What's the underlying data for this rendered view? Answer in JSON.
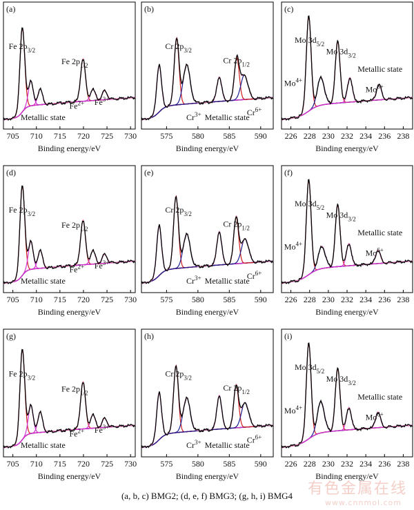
{
  "caption": "(a, b, c) BMG2; (d, e, f) BMG3; (g, h, i) BMG4",
  "watermark": {
    "line1": "有色金属在线",
    "line2": "www.cnnmol.com"
  },
  "colors": {
    "raw": "#000000",
    "background": "#1a1a8c",
    "red": "#d01c1c",
    "magenta": "#d030d0",
    "pink": "#e88ab0"
  },
  "chart_data": [
    {
      "type": "line",
      "panel": "(a)",
      "element": "Fe",
      "xlabel": "Binding energy/eV",
      "xlim": [
        703,
        731
      ],
      "xticks": [
        705,
        710,
        715,
        720,
        725,
        730
      ],
      "labels": [
        {
          "text": "Fe 2p",
          "sub": "3/2"
        },
        {
          "text": "Fe 2p",
          "sub": "1/2"
        },
        {
          "text": "Metallic state"
        },
        {
          "text": "Fe",
          "sup": "2+"
        },
        {
          "text": "Fe",
          "sup": "3+"
        }
      ],
      "peaks": [
        {
          "name": "Metallic state",
          "center": 707.0,
          "height": 0.75,
          "color": "red"
        },
        {
          "name": "Fe2+",
          "center": 708.8,
          "height": 0.22,
          "color": "magenta"
        },
        {
          "name": "Fe3+",
          "center": 710.8,
          "height": 0.14,
          "color": "magenta"
        },
        {
          "name": "Metallic state",
          "center": 719.9,
          "height": 0.38,
          "color": "red"
        },
        {
          "name": "Fe2+",
          "center": 722.0,
          "height": 0.1,
          "color": "magenta"
        },
        {
          "name": "Fe3+",
          "center": 724.5,
          "height": 0.08,
          "color": "magenta"
        }
      ]
    },
    {
      "type": "line",
      "panel": "(b)",
      "element": "Cr",
      "xlabel": "Binding energy/eV",
      "xlim": [
        571,
        592
      ],
      "xticks": [
        575,
        580,
        585,
        590
      ],
      "labels": [
        {
          "text": "Cr 2p",
          "sub": "3/2"
        },
        {
          "text": "Cr 2p",
          "sub": "1/2"
        },
        {
          "text": "Cr",
          "sup": "3+"
        },
        {
          "text": "Metallic state"
        },
        {
          "text": "Cr",
          "sup": "6+"
        }
      ],
      "peaks": [
        {
          "name": "Metallic state",
          "center": 573.8,
          "height": 0.42,
          "color": "magenta"
        },
        {
          "name": "Cr3+",
          "center": 576.6,
          "height": 0.6,
          "color": "red"
        },
        {
          "name": "Cr6+",
          "center": 578.2,
          "height": 0.35,
          "color": "navy"
        },
        {
          "name": "Metallic state",
          "center": 583.4,
          "height": 0.22,
          "color": "magenta"
        },
        {
          "name": "Cr3+",
          "center": 586.2,
          "height": 0.38,
          "color": "red"
        },
        {
          "name": "Cr6+",
          "center": 587.4,
          "height": 0.22,
          "color": "navy"
        }
      ]
    },
    {
      "type": "line",
      "panel": "(c)",
      "element": "Mo",
      "xlabel": "Binding energy/eV",
      "xlim": [
        225,
        239
      ],
      "xticks": [
        226,
        228,
        230,
        232,
        234,
        236,
        238
      ],
      "labels": [
        {
          "text": "Mo 3d",
          "sub": "5/2"
        },
        {
          "text": "Mo 3d",
          "sub": "3/2"
        },
        {
          "text": "Metallic state"
        },
        {
          "text": "Mo",
          "sup": "4+"
        },
        {
          "text": "Mo",
          "sup": "6+"
        }
      ],
      "peaks": [
        {
          "name": "Metallic state",
          "center": 227.9,
          "height": 0.85,
          "color": "red"
        },
        {
          "name": "Mo4+",
          "center": 229.2,
          "height": 0.25,
          "color": "navy"
        },
        {
          "name": "Metallic state",
          "center": 231.0,
          "height": 0.55,
          "color": "red"
        },
        {
          "name": "Mo6+",
          "center": 232.3,
          "height": 0.22,
          "color": "magenta"
        },
        {
          "name": "Mo6+",
          "center": 235.4,
          "height": 0.14,
          "color": "magenta"
        }
      ]
    },
    {
      "type": "line",
      "panel": "(d)",
      "element": "Fe",
      "xlabel": "Binding energy/eV",
      "xlim": [
        703,
        731
      ],
      "xticks": [
        705,
        710,
        715,
        720,
        725,
        730
      ],
      "labels": [
        {
          "text": "Fe 2p",
          "sub": "3/2"
        },
        {
          "text": "Fe 2p",
          "sub": "1/2"
        },
        {
          "text": "Metallic state"
        },
        {
          "text": "Fe",
          "sup": "2+"
        },
        {
          "text": "Fe",
          "sup": "3+"
        }
      ],
      "peaks": [
        {
          "name": "Metallic state",
          "center": 707.0,
          "height": 0.8,
          "color": "red"
        },
        {
          "name": "Fe2+",
          "center": 708.8,
          "height": 0.25,
          "color": "magenta"
        },
        {
          "name": "Fe3+",
          "center": 710.8,
          "height": 0.16,
          "color": "magenta"
        },
        {
          "name": "Metallic state",
          "center": 719.9,
          "height": 0.4,
          "color": "red"
        },
        {
          "name": "Fe2+",
          "center": 722.0,
          "height": 0.12,
          "color": "magenta"
        },
        {
          "name": "Fe3+",
          "center": 724.5,
          "height": 0.08,
          "color": "magenta"
        }
      ]
    },
    {
      "type": "line",
      "panel": "(e)",
      "element": "Cr",
      "xlabel": "Binding energy/eV",
      "xlim": [
        571,
        592
      ],
      "xticks": [
        575,
        580,
        585,
        590
      ],
      "labels": [
        {
          "text": "Cr 2p",
          "sub": "3/2"
        },
        {
          "text": "Cr 2p",
          "sub": "1/2"
        },
        {
          "text": "Cr",
          "sup": "3+"
        },
        {
          "text": "Metallic state"
        },
        {
          "text": "Cr",
          "sup": "6+"
        }
      ],
      "peaks": [
        {
          "name": "Metallic state",
          "center": 573.8,
          "height": 0.45,
          "color": "magenta"
        },
        {
          "name": "Cr3+",
          "center": 576.5,
          "height": 0.65,
          "color": "red"
        },
        {
          "name": "Cr6+",
          "center": 578.2,
          "height": 0.3,
          "color": "navy"
        },
        {
          "name": "Metallic state",
          "center": 583.4,
          "height": 0.3,
          "color": "magenta"
        },
        {
          "name": "Cr3+",
          "center": 586.1,
          "height": 0.42,
          "color": "red"
        },
        {
          "name": "Cr6+",
          "center": 587.5,
          "height": 0.22,
          "color": "navy"
        }
      ]
    },
    {
      "type": "line",
      "panel": "(f)",
      "element": "Mo",
      "xlabel": "Binding energy/eV",
      "xlim": [
        225,
        239
      ],
      "xticks": [
        226,
        228,
        230,
        232,
        234,
        236,
        238
      ],
      "labels": [
        {
          "text": "Mo 3d",
          "sub": "5/2"
        },
        {
          "text": "Mo 3d",
          "sub": "3/2"
        },
        {
          "text": "Metallic state"
        },
        {
          "text": "Mo",
          "sup": "4+"
        },
        {
          "text": "Mo",
          "sup": "6+"
        }
      ],
      "peaks": [
        {
          "name": "Metallic state",
          "center": 227.9,
          "height": 0.85,
          "color": "red"
        },
        {
          "name": "Mo4+",
          "center": 229.3,
          "height": 0.2,
          "color": "navy"
        },
        {
          "name": "Metallic state",
          "center": 231.0,
          "height": 0.55,
          "color": "red"
        },
        {
          "name": "Mo6+",
          "center": 232.2,
          "height": 0.2,
          "color": "magenta"
        },
        {
          "name": "Mo6+",
          "center": 235.3,
          "height": 0.12,
          "color": "magenta"
        }
      ]
    },
    {
      "type": "line",
      "panel": "(g)",
      "element": "Fe",
      "xlabel": "Binding energy/eV",
      "xlim": [
        703,
        731
      ],
      "xticks": [
        705,
        710,
        715,
        720,
        725,
        730
      ],
      "labels": [
        {
          "text": "Fe 2p",
          "sub": "3/2"
        },
        {
          "text": "Fe 2p",
          "sub": "1/2"
        },
        {
          "text": "Metallic state"
        },
        {
          "text": "Fe",
          "sup": "2+"
        },
        {
          "text": "Fe",
          "sup": "3+"
        }
      ],
      "peaks": [
        {
          "name": "Metallic state",
          "center": 707.0,
          "height": 0.8,
          "color": "red"
        },
        {
          "name": "Fe2+",
          "center": 708.8,
          "height": 0.25,
          "color": "magenta"
        },
        {
          "name": "Fe3+",
          "center": 710.8,
          "height": 0.18,
          "color": "magenta"
        },
        {
          "name": "Metallic state",
          "center": 719.9,
          "height": 0.42,
          "color": "red"
        },
        {
          "name": "Fe2+",
          "center": 722.0,
          "height": 0.12,
          "color": "magenta"
        },
        {
          "name": "Fe3+",
          "center": 724.5,
          "height": 0.08,
          "color": "magenta"
        }
      ]
    },
    {
      "type": "line",
      "panel": "(h)",
      "element": "Cr",
      "xlabel": "Binding energy/eV",
      "xlim": [
        571,
        592
      ],
      "xticks": [
        575,
        580,
        585,
        590
      ],
      "labels": [
        {
          "text": "Cr 2p",
          "sub": "3/2"
        },
        {
          "text": "Cr 2p",
          "sub": "1/2"
        },
        {
          "text": "Cr",
          "sup": "3+"
        },
        {
          "text": "Metallic state"
        },
        {
          "text": "Cr",
          "sup": "6+"
        }
      ],
      "peaks": [
        {
          "name": "Metallic state",
          "center": 573.8,
          "height": 0.42,
          "color": "magenta"
        },
        {
          "name": "Cr3+",
          "center": 576.5,
          "height": 0.6,
          "color": "red"
        },
        {
          "name": "Cr6+",
          "center": 578.2,
          "height": 0.3,
          "color": "navy"
        },
        {
          "name": "Metallic state",
          "center": 583.4,
          "height": 0.3,
          "color": "magenta"
        },
        {
          "name": "Cr3+",
          "center": 586.1,
          "height": 0.38,
          "color": "red"
        },
        {
          "name": "Cr6+",
          "center": 587.5,
          "height": 0.22,
          "color": "navy"
        }
      ]
    },
    {
      "type": "line",
      "panel": "(i)",
      "element": "Mo",
      "xlabel": "Binding energy/eV",
      "xlim": [
        225,
        239
      ],
      "xticks": [
        226,
        228,
        230,
        232,
        234,
        236,
        238
      ],
      "labels": [
        {
          "text": "Mo 3d",
          "sub": "5/2"
        },
        {
          "text": "Mo 3d",
          "sub": "3/2"
        },
        {
          "text": "Metallic state"
        },
        {
          "text": "Mo",
          "sup": "4+"
        },
        {
          "text": "Mo",
          "sup": "6+"
        }
      ],
      "peaks": [
        {
          "name": "Metallic state",
          "center": 227.9,
          "height": 0.85,
          "color": "red"
        },
        {
          "name": "Mo4+",
          "center": 229.2,
          "height": 0.28,
          "color": "navy"
        },
        {
          "name": "Metallic state",
          "center": 231.0,
          "height": 0.55,
          "color": "red"
        },
        {
          "name": "Mo6+",
          "center": 232.2,
          "height": 0.2,
          "color": "magenta"
        },
        {
          "name": "Mo6+",
          "center": 235.3,
          "height": 0.14,
          "color": "magenta"
        }
      ]
    }
  ]
}
